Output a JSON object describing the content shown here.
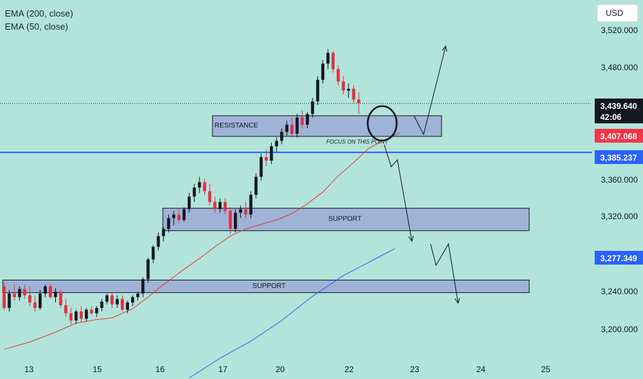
{
  "legend": {
    "ema200": "EMA (200, close)",
    "ema50": "EMA (50, close)"
  },
  "currency_button": "USD",
  "colors": {
    "background": "#b2e4d9",
    "bull_candle": "#131722",
    "bear_candle": "#e02f44",
    "ema50": "#e03a3a",
    "ema200": "#2962ff",
    "level_line": "#2962ff",
    "zone_fill": "#9fb3d6",
    "price_badge": "#131722",
    "ema50_badge": "#f23645",
    "level_badge": "#2962ff",
    "ema200_badge": "#2962ff"
  },
  "chart_data": {
    "type": "candlestick",
    "x_axis": {
      "tick_labels": [
        "13",
        "15",
        "16",
        "17",
        "20",
        "22",
        "23",
        "24",
        "25"
      ]
    },
    "y_axis": {
      "tick_labels": [
        "3,520.000",
        "3,480.000",
        "3,360.000",
        "3,320.000",
        "3,240.000",
        "3,200.000"
      ],
      "ylim": [
        3162,
        3538
      ]
    },
    "price_badges": {
      "last_price": "3,439.640",
      "countdown": "42:06",
      "ema50": "3,407.068",
      "level": "3,385.237",
      "ema200": "3,277.349"
    },
    "horizontal_level": 3385.237,
    "annotations": {
      "resistance_label": "RESISTANCE",
      "support_label_upper": "SUPPORT",
      "support_label_lower": "SUPPORT",
      "focus_note": "FOCUS ON THIS POINT"
    },
    "zones": [
      {
        "name": "resistance",
        "low": 3403,
        "high": 3426
      },
      {
        "name": "support-upper",
        "low": 3298,
        "high": 3323
      },
      {
        "name": "support-lower",
        "low": 3229,
        "high": 3243
      }
    ],
    "ema50": [
      [
        0,
        3166
      ],
      [
        5,
        3174
      ],
      [
        10,
        3185
      ],
      [
        14,
        3195
      ],
      [
        18,
        3199
      ],
      [
        21,
        3201
      ],
      [
        25,
        3211
      ],
      [
        28,
        3224
      ],
      [
        31,
        3238
      ],
      [
        35,
        3255
      ],
      [
        38,
        3267
      ],
      [
        41,
        3280
      ],
      [
        44,
        3292
      ],
      [
        47,
        3300
      ],
      [
        50,
        3305
      ],
      [
        53,
        3310
      ],
      [
        56,
        3317
      ],
      [
        59,
        3328
      ],
      [
        62,
        3341
      ],
      [
        65,
        3359
      ],
      [
        68,
        3374
      ],
      [
        71,
        3390
      ],
      [
        74,
        3399
      ],
      [
        77,
        3407
      ]
    ],
    "ema200": [
      [
        36,
        3134
      ],
      [
        42,
        3156
      ],
      [
        48,
        3175
      ],
      [
        54,
        3198
      ],
      [
        60,
        3225
      ],
      [
        66,
        3248
      ],
      [
        72,
        3266
      ],
      [
        76,
        3278
      ]
    ],
    "candles": [
      [
        0,
        3236,
        3240,
        3210,
        3212
      ],
      [
        1,
        3212,
        3232,
        3208,
        3228
      ],
      [
        2,
        3228,
        3238,
        3220,
        3224
      ],
      [
        3,
        3224,
        3236,
        3220,
        3233
      ],
      [
        4,
        3233,
        3238,
        3222,
        3226
      ],
      [
        5,
        3226,
        3236,
        3214,
        3218
      ],
      [
        6,
        3218,
        3226,
        3208,
        3212
      ],
      [
        7,
        3212,
        3232,
        3210,
        3228
      ],
      [
        8,
        3228,
        3238,
        3224,
        3236
      ],
      [
        9,
        3236,
        3239,
        3222,
        3224
      ],
      [
        10,
        3224,
        3234,
        3218,
        3230
      ],
      [
        11,
        3230,
        3232,
        3212,
        3215
      ],
      [
        12,
        3215,
        3222,
        3202,
        3206
      ],
      [
        13,
        3206,
        3212,
        3194,
        3198
      ],
      [
        14,
        3198,
        3210,
        3194,
        3208
      ],
      [
        15,
        3208,
        3214,
        3196,
        3200
      ],
      [
        16,
        3200,
        3212,
        3197,
        3210
      ],
      [
        17,
        3210,
        3214,
        3204,
        3206
      ],
      [
        18,
        3206,
        3214,
        3202,
        3212
      ],
      [
        19,
        3212,
        3222,
        3208,
        3219
      ],
      [
        20,
        3219,
        3228,
        3216,
        3226
      ],
      [
        21,
        3226,
        3230,
        3212,
        3216
      ],
      [
        22,
        3216,
        3226,
        3212,
        3222
      ],
      [
        23,
        3222,
        3226,
        3208,
        3210
      ],
      [
        24,
        3210,
        3220,
        3206,
        3218
      ],
      [
        25,
        3218,
        3226,
        3214,
        3224
      ],
      [
        26,
        3224,
        3230,
        3220,
        3228
      ],
      [
        27,
        3228,
        3246,
        3224,
        3244
      ],
      [
        28,
        3244,
        3268,
        3240,
        3266
      ],
      [
        29,
        3266,
        3282,
        3262,
        3280
      ],
      [
        30,
        3280,
        3296,
        3276,
        3292
      ],
      [
        31,
        3292,
        3302,
        3286,
        3300
      ],
      [
        32,
        3300,
        3316,
        3296,
        3312
      ],
      [
        33,
        3312,
        3320,
        3304,
        3316
      ],
      [
        34,
        3316,
        3322,
        3306,
        3310
      ],
      [
        35,
        3310,
        3324,
        3308,
        3322
      ],
      [
        36,
        3322,
        3340,
        3318,
        3336
      ],
      [
        37,
        3336,
        3350,
        3330,
        3346
      ],
      [
        38,
        3346,
        3358,
        3340,
        3352
      ],
      [
        39,
        3352,
        3356,
        3338,
        3342
      ],
      [
        40,
        3342,
        3350,
        3326,
        3330
      ],
      [
        41,
        3330,
        3336,
        3318,
        3322
      ],
      [
        42,
        3322,
        3334,
        3318,
        3330
      ],
      [
        43,
        3330,
        3334,
        3316,
        3320
      ],
      [
        44,
        3320,
        3324,
        3294,
        3300
      ],
      [
        45,
        3300,
        3322,
        3296,
        3318
      ],
      [
        46,
        3318,
        3326,
        3312,
        3322
      ],
      [
        47,
        3322,
        3330,
        3312,
        3316
      ],
      [
        48,
        3316,
        3342,
        3312,
        3338
      ],
      [
        49,
        3338,
        3362,
        3334,
        3358
      ],
      [
        50,
        3358,
        3384,
        3354,
        3380
      ],
      [
        51,
        3380,
        3388,
        3370,
        3376
      ],
      [
        52,
        3376,
        3396,
        3372,
        3392
      ],
      [
        53,
        3392,
        3402,
        3386,
        3398
      ],
      [
        54,
        3398,
        3412,
        3394,
        3408
      ],
      [
        55,
        3408,
        3420,
        3404,
        3416
      ],
      [
        56,
        3416,
        3424,
        3402,
        3406
      ],
      [
        57,
        3406,
        3428,
        3402,
        3424
      ],
      [
        58,
        3424,
        3432,
        3412,
        3416
      ],
      [
        59,
        3416,
        3430,
        3412,
        3428
      ],
      [
        60,
        3428,
        3446,
        3424,
        3442
      ],
      [
        61,
        3442,
        3470,
        3438,
        3466
      ],
      [
        62,
        3466,
        3488,
        3462,
        3484
      ],
      [
        63,
        3484,
        3500,
        3478,
        3496
      ],
      [
        64,
        3496,
        3498,
        3474,
        3478
      ],
      [
        65,
        3478,
        3482,
        3460,
        3464
      ],
      [
        66,
        3464,
        3470,
        3450,
        3454
      ],
      [
        67,
        3454,
        3462,
        3446,
        3456
      ],
      [
        68,
        3456,
        3460,
        3440,
        3444
      ],
      [
        69,
        3444,
        3452,
        3428,
        3440
      ]
    ]
  }
}
